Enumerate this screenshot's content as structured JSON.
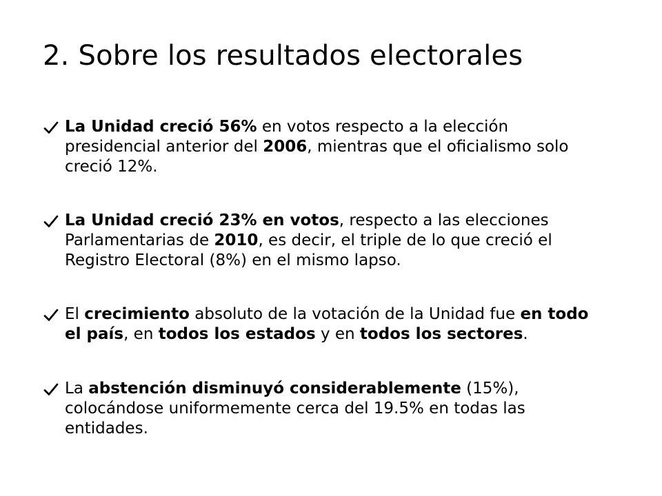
{
  "slide": {
    "title": "2. Sobre los resultados electorales",
    "bullets": [
      {
        "icon": "checkmark-icon",
        "segments": [
          {
            "text": "La Unidad creció 56%",
            "bold": true
          },
          {
            "text": " en votos respecto a la elección presidencial anterior del  ",
            "bold": false
          },
          {
            "text": "2006",
            "bold": true
          },
          {
            "text": ", mientras que el oficialismo solo creció 12%.",
            "bold": false
          }
        ]
      },
      {
        "icon": "checkmark-icon",
        "segments": [
          {
            "text": "La Unidad creció 23% en votos",
            "bold": true
          },
          {
            "text": ", respecto a las elecciones Parlamentarias de ",
            "bold": false
          },
          {
            "text": "2010",
            "bold": true
          },
          {
            "text": ", es decir, el triple de lo que creció el Registro Electoral (8%) en el mismo lapso.",
            "bold": false
          }
        ]
      },
      {
        "icon": "checkmark-icon",
        "segments": [
          {
            "text": "El ",
            "bold": false
          },
          {
            "text": "crecimiento",
            "bold": true
          },
          {
            "text": " absoluto de la votación de la Unidad fue ",
            "bold": false
          },
          {
            "text": "en todo el país",
            "bold": true
          },
          {
            "text": ", en ",
            "bold": false
          },
          {
            "text": "todos los estados",
            "bold": true
          },
          {
            "text": " y en ",
            "bold": false
          },
          {
            "text": "todos los sectores",
            "bold": true
          },
          {
            "text": ".",
            "bold": false
          }
        ]
      },
      {
        "icon": "checkmark-icon",
        "segments": [
          {
            "text": "La ",
            "bold": false
          },
          {
            "text": "abstención disminuyó considerablemente",
            "bold": true
          },
          {
            "text": " (15%), colocándose uniformemente cerca del 19.5% en todas las entidades.",
            "bold": false
          }
        ]
      }
    ]
  }
}
